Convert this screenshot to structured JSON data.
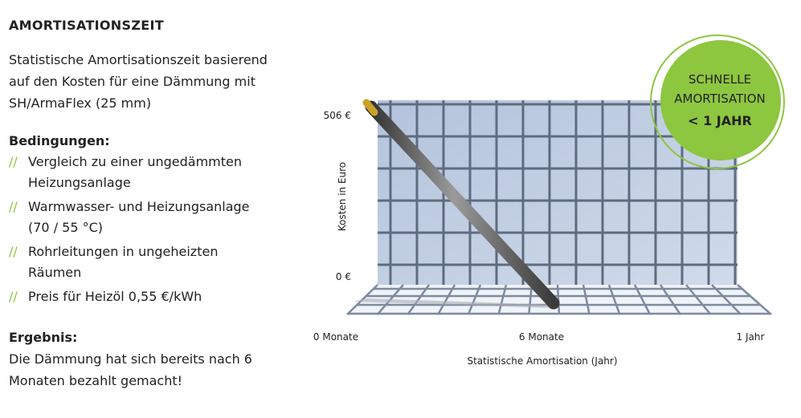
{
  "title": "AMORTISATIONSZEIT",
  "intro": "Statistische Amortisationszeit basierend auf den Kosten für eine Dämmung mit SH/ArmaFlex (25 mm)",
  "conditions": {
    "heading": "Bedingungen:",
    "bullet": "//",
    "items": [
      "Vergleich zu einer ungedämmten Heizungsanlage",
      "Warmwasser- und Heizungsanlage (70 / 55 °C)",
      "Rohrleitungen in ungeheizten Räumen",
      "Preis für Heizöl 0,55 €/kWh"
    ]
  },
  "result": {
    "heading": "Ergebnis:",
    "text": "Die Dämmung hat sich bereits nach 6 Monaten bezahlt gemacht!"
  },
  "graphic": {
    "y_axis_label": "Kosten in Euro",
    "y_top_label": "506 €",
    "y_bottom_label": "0 €",
    "x_labels": [
      "0 Monate",
      "6 Monate",
      "1 Jahr"
    ],
    "x_axis_label": "Statistische Amortisation (Jahr)",
    "badge": [
      "SCHNELLE",
      "AMORTISATION",
      "< 1 JAHR"
    ]
  }
}
